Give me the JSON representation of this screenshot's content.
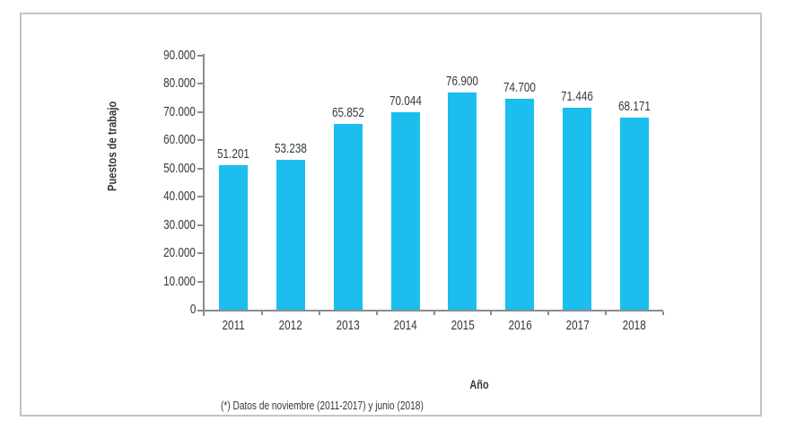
{
  "frame": {
    "border_color": "#c3c4c6",
    "background": "#ffffff"
  },
  "chart_data": {
    "type": "bar",
    "title": "",
    "categories": [
      "2011",
      "2012",
      "2013",
      "2014",
      "2015",
      "2016",
      "2017",
      "2018"
    ],
    "values": [
      51201,
      53238,
      65852,
      70044,
      76900,
      74700,
      71446,
      68171
    ],
    "value_labels": [
      "51.201",
      "53.238",
      "65.852",
      "70.044",
      "76.900",
      "74.700",
      "71.446",
      "68.171"
    ],
    "xlabel": "Año",
    "ylabel": "Puestos de trabajo",
    "ylim": [
      0,
      90000
    ],
    "ytick_step": 10000,
    "ytick_labels": [
      "0",
      "10.000",
      "20.000",
      "30.000",
      "40.000",
      "50.000",
      "60.000",
      "70.000",
      "80.000",
      "90.000"
    ],
    "bar_color": "#1cbeee",
    "axis_color": "#8a8c8f",
    "text_color": "#35383e",
    "grid": false,
    "legend_position": "none"
  },
  "footnote": "(*) Datos de noviembre (2011-2017) y junio (2018)"
}
